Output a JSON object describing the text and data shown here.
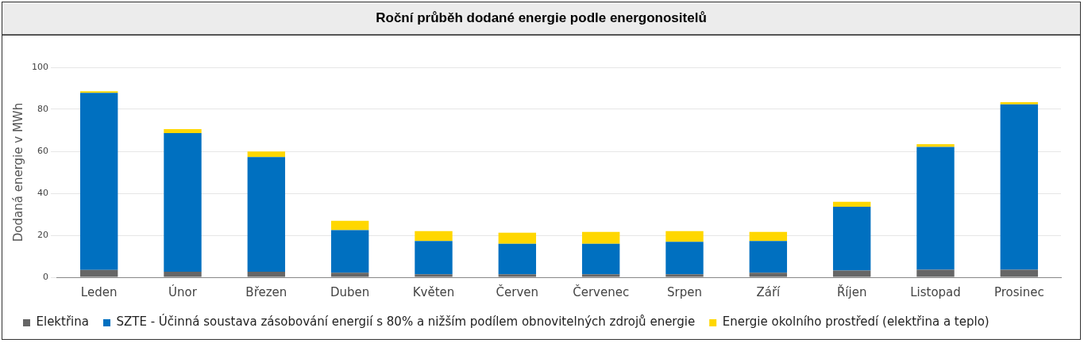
{
  "chart_data": {
    "type": "bar",
    "title": "Roční průběh dodané energie podle energonositelů",
    "ylabel": "Dodaná energie v MWh",
    "categories": [
      "Leden",
      "Únor",
      "Březen",
      "Duben",
      "Květen",
      "Červen",
      "Červenec",
      "Srpen",
      "Září",
      "Říjen",
      "Listopad",
      "Prosinec"
    ],
    "stacked": true,
    "series": [
      {
        "name": "Elektřina",
        "color": "#666666",
        "values": [
          3.5,
          2.6,
          2.6,
          2.2,
          1.4,
          1.4,
          1.4,
          1.4,
          2.2,
          3.2,
          3.6,
          3.6
        ]
      },
      {
        "name": "SZTE - Účinná soustava zásobování energií s 80% a nižším podílem obnovitelných zdrojů energie",
        "color": "#0070c0",
        "values": [
          84.3,
          66.1,
          54.7,
          20.3,
          15.9,
          14.5,
          14.5,
          15.5,
          15.1,
          30.4,
          58.5,
          78.8
        ]
      },
      {
        "name": "Energie okolního prostředí (elektřina a teplo)",
        "color": "#ffd700",
        "values": [
          0.8,
          1.9,
          2.6,
          4.4,
          4.7,
          5.3,
          5.7,
          5.1,
          4.3,
          2.3,
          1.3,
          1.0
        ]
      }
    ],
    "ylim": [
      0,
      100
    ],
    "yticks": [
      0,
      20,
      40,
      60,
      80,
      100
    ],
    "grid": "y",
    "legend": "bottom"
  }
}
